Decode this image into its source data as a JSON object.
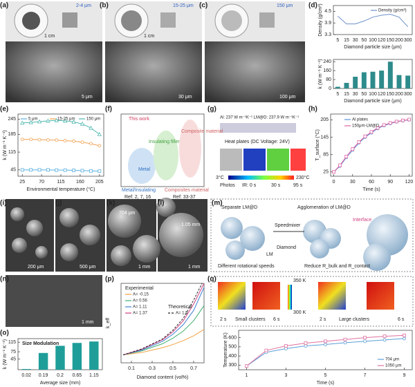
{
  "panels": [
    "(a)",
    "(b)",
    "(c)",
    "(d)",
    "(e)",
    "(f)",
    "(g)",
    "(h)",
    "(i)",
    "(j)",
    "(k)",
    "(l)",
    "(m)",
    "(n)",
    "(o)",
    "(p)",
    "(q)"
  ],
  "texts": {
    "a_size": "2-4 μm",
    "b_size": "15-25 μm",
    "c_size": "150 μm",
    "a_cm": "1 cm",
    "b_cm": "1 cm",
    "a_sb": "5 μm",
    "b_sb": "30 μm",
    "c_sb": "100 μm",
    "f_this": "This work",
    "f_ins": "Insulating filler",
    "f_comp": "Composite material",
    "f_metal": "Metal",
    "f_b1": "Metal/Insulating",
    "f_b2": "Composites material",
    "f_r1": "Ref: 2, 7, 16",
    "f_r2": "Ref: 33-37",
    "g_top": "Al: 237 W m⁻¹K⁻¹ LM@D: 237.9 W m⁻¹K⁻¹",
    "g_heat": "Heat plates (DC Voltage: 24V)",
    "g_min": "3°C",
    "g_max": "230°C",
    "g_photo": "Photos",
    "g_t0": "IR: 0 s",
    "g_t1": "30 s",
    "g_t2": "95 s",
    "i_sb": "200 μm",
    "j_sb": "500 μm",
    "k_d": "704 μm",
    "k_sb": "1 mm",
    "l_d": "1.05 mm",
    "l_sb": "1 mm",
    "m_sep": "Separate LM@D",
    "m_agg": "Agglomeration of LM@D",
    "m_mix": "Speedmixer",
    "m_int": "Interface",
    "m_lm": "LM",
    "m_dia": "Diamond",
    "m_rot": "Different rotational speeds",
    "m_red": "Reduce R_bulk and R_contact",
    "n_sb": "1 mm",
    "q_hi": "350 K",
    "q_lo": "300 K",
    "q_s1": "2 s",
    "q_s2": "6 s",
    "q_small": "Small clusters",
    "q_l1": "2 s",
    "q_l2": "6 s",
    "q_large": "Large clusters"
  },
  "chart_data": [
    {
      "type": "line",
      "xlabel": "Diamond particle size (μm)",
      "ylabel": "Density (g/cm³)",
      "categories": [
        "5",
        "15",
        "30",
        "50",
        "100",
        "120",
        "150",
        "200",
        "300"
      ],
      "series": [
        {
          "name": "Density (g/cm³)",
          "color": "#6b8fc9",
          "values": [
            4.25,
            3.85,
            3.85,
            4.0,
            4.2,
            4.3,
            4.35,
            4.2,
            3.7
          ]
        }
      ],
      "ylim": [
        3.3,
        4.8
      ],
      "yticks": [
        3.3,
        3.9,
        4.5
      ],
      "legend": "upper right"
    },
    {
      "type": "bar",
      "xlabel": "Diamond particle size (μm)",
      "ylabel": "k (W m⁻¹ K⁻¹)",
      "categories": [
        "5",
        "15",
        "30",
        "50",
        "100",
        "120",
        "150",
        "200",
        "300"
      ],
      "values": [
        15,
        50,
        105,
        145,
        150,
        160,
        240,
        120,
        115
      ],
      "color": "#2e8b8b",
      "ylim": [
        0,
        260
      ],
      "yticks": [
        0,
        80,
        160,
        240
      ]
    },
    {
      "type": "line",
      "xlabel": "Environmental temperature (°C)",
      "ylabel": "k (W m⁻¹ K⁻¹)",
      "x": [
        25,
        45,
        65,
        85,
        105,
        125,
        145,
        165,
        185,
        205
      ],
      "series": [
        {
          "name": "5 μm",
          "color": "#5ab0e0",
          "marker": "square",
          "values": [
            45,
            45,
            45,
            45,
            44,
            44,
            43,
            42,
            41,
            40
          ]
        },
        {
          "name": "15-25 μm",
          "color": "#f0a050",
          "marker": "circle",
          "values": [
            165,
            165,
            164,
            163,
            162,
            160,
            158,
            154,
            148,
            140
          ]
        },
        {
          "name": "150 μm",
          "color": "#50b8b0",
          "marker": "triangle",
          "values": [
            230,
            232,
            235,
            238,
            240,
            238,
            234,
            226,
            210,
            185
          ]
        }
      ],
      "xlim": [
        15,
        215
      ],
      "xticks": [
        25,
        70,
        115,
        160,
        205
      ],
      "ylim": [
        20,
        265
      ],
      "yticks": [
        45,
        115,
        185,
        245
      ],
      "legend": "top"
    },
    {
      "type": "line",
      "xlabel": "Time (s)",
      "ylabel": "T_surface (°C)",
      "x": [
        0,
        10,
        20,
        30,
        40,
        50,
        60,
        70,
        80,
        90,
        100,
        110,
        120
      ],
      "series": [
        {
          "name": "Al plates",
          "color": "#5a8fd8",
          "marker": "circle",
          "values": [
            25,
            45,
            75,
            100,
            125,
            145,
            160,
            175,
            185,
            192,
            198,
            202,
            205
          ]
        },
        {
          "name": "150μm-LM@D",
          "color": "#e060a0",
          "marker": "square",
          "values": [
            25,
            48,
            78,
            104,
            128,
            148,
            163,
            177,
            187,
            194,
            199,
            203,
            206
          ]
        }
      ],
      "xlim": [
        -5,
        125
      ],
      "xticks": [
        0,
        30,
        60,
        90,
        120
      ],
      "ylim": [
        10,
        225
      ],
      "yticks": [
        25,
        85,
        145,
        205
      ],
      "legend": "upper left"
    },
    {
      "type": "bar",
      "title": "Size Modulation",
      "xlabel": "Average size (mm)",
      "ylabel": "k (W m⁻¹ K⁻¹)",
      "categories": [
        "0.02",
        "0.19",
        "0.2",
        "0.65",
        "1.15"
      ],
      "values": [
        3,
        70,
        100,
        112,
        118
      ],
      "color": "#1f9e99",
      "ylim": [
        0,
        130
      ],
      "yticks": [
        45,
        75,
        115
      ]
    },
    {
      "type": "line",
      "xlabel": "Diamond content (vol%)",
      "ylabel": "k_eff",
      "annotations": [
        "Experimental",
        "Theoretical"
      ],
      "x": [
        0.02,
        0.2,
        0.4,
        0.5,
        0.6,
        0.7,
        0.8
      ],
      "series": [
        {
          "name": "A= -0.15",
          "color": "#f0a040",
          "values": [
            1,
            1.3,
            1.9,
            2.3,
            2.8,
            3.4,
            4.2
          ]
        },
        {
          "name": "A= 0.56",
          "color": "#40b070",
          "values": [
            1,
            1.5,
            2.4,
            3.1,
            4.0,
            5.3,
            7.2
          ]
        },
        {
          "name": "A= 1.11",
          "color": "#4080d0",
          "values": [
            1,
            1.6,
            2.7,
            3.6,
            4.8,
            6.6,
            9.5
          ]
        },
        {
          "name": "A= 1.37",
          "color": "#d04080",
          "values": [
            1,
            1.7,
            2.9,
            3.9,
            5.3,
            7.4,
            10
          ]
        },
        {
          "name": "A= 1.5",
          "color": "#222222",
          "dash": true,
          "values": [
            1,
            1.75,
            3.0,
            4.1,
            5.6,
            7.9,
            10.5
          ]
        }
      ],
      "xlim": [
        0,
        0.8
      ],
      "xticks": [
        0.1,
        0.3,
        0.5,
        0.7
      ],
      "ylim": [
        0,
        10
      ]
    },
    {
      "type": "line",
      "xlabel": "Time (s)",
      "ylabel": "Temperature (K)",
      "x": [
        1,
        2,
        3,
        4,
        5,
        6,
        7,
        8,
        9
      ],
      "series": [
        {
          "name": "704 μm",
          "color": "#5a9fd8",
          "marker": "circle",
          "values": [
            290,
            440,
            480,
            510,
            525,
            545,
            560,
            575,
            590
          ]
        },
        {
          "name": "1050 μm",
          "color": "#e070a0",
          "marker": "square",
          "values": [
            290,
            460,
            510,
            540,
            560,
            580,
            600,
            615,
            625
          ]
        }
      ],
      "xlim": [
        0.6,
        9.4
      ],
      "xticks": [
        1,
        3,
        5,
        7,
        9
      ],
      "ylim": [
        250,
        680
      ],
      "yticks": [
        300,
        400,
        500,
        600
      ],
      "legend": "lower right"
    }
  ]
}
